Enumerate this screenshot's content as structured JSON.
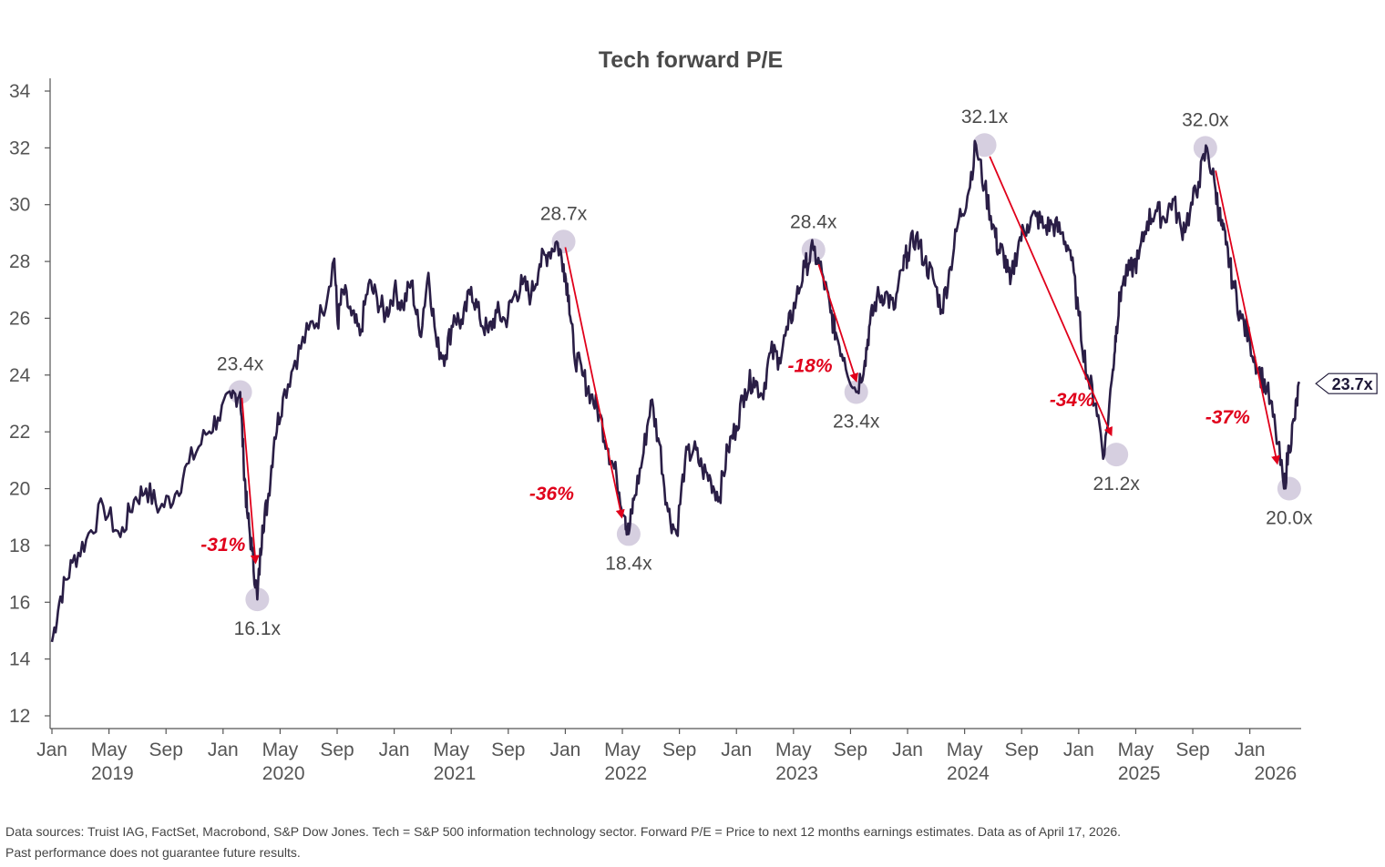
{
  "chart_data": {
    "type": "line",
    "title": "Tech forward P/E",
    "xlabel": "",
    "ylabel": "",
    "ylim": [
      12,
      34
    ],
    "y_ticks": [
      "12",
      "14",
      "16",
      "18",
      "20",
      "22",
      "24",
      "26",
      "28",
      "30",
      "32",
      "34"
    ],
    "x_range": [
      2019.0,
      2026.3
    ],
    "x_tick_labels": [
      "Jan",
      "May",
      "Sep",
      "Jan",
      "May",
      "Sep",
      "Jan",
      "May",
      "Sep",
      "Jan",
      "May",
      "Sep",
      "Jan",
      "May",
      "Sep",
      "Jan",
      "May",
      "Sep",
      "Jan",
      "May",
      "Sep",
      "Jan"
    ],
    "year_labels": [
      "2019",
      "2020",
      "2021",
      "2022",
      "2023",
      "2024",
      "2025",
      "2026"
    ],
    "series": [
      {
        "name": "Tech forward P/E",
        "color": "#2a1e46",
        "x": [
          2019.0,
          2019.05,
          2019.12,
          2019.2,
          2019.3,
          2019.4,
          2019.48,
          2019.55,
          2019.63,
          2019.72,
          2019.8,
          2019.9,
          2019.97,
          2020.05,
          2020.1,
          2020.12,
          2020.14,
          2020.17,
          2020.2,
          2020.23,
          2020.26,
          2020.3,
          2020.35,
          2020.42,
          2020.5,
          2020.58,
          2020.65,
          2020.67,
          2020.7,
          2020.75,
          2020.8,
          2020.85,
          2020.9,
          2020.95,
          2021.0,
          2021.05,
          2021.1,
          2021.15,
          2021.2,
          2021.25,
          2021.3,
          2021.35,
          2021.4,
          2021.45,
          2021.5,
          2021.55,
          2021.6,
          2021.65,
          2021.7,
          2021.75,
          2021.8,
          2021.85,
          2021.9,
          2021.95,
          2021.99,
          2022.02,
          2022.05,
          2022.1,
          2022.15,
          2022.2,
          2022.25,
          2022.3,
          2022.35,
          2022.37,
          2022.4,
          2022.45,
          2022.5,
          2022.55,
          2022.6,
          2022.65,
          2022.7,
          2022.75,
          2022.8,
          2022.85,
          2022.9,
          2022.95,
          2023.0,
          2023.05,
          2023.1,
          2023.15,
          2023.2,
          2023.25,
          2023.3,
          2023.35,
          2023.4,
          2023.45,
          2023.5,
          2023.55,
          2023.58,
          2023.63,
          2023.7,
          2023.75,
          2023.78,
          2023.82,
          2023.87,
          2023.92,
          2023.97,
          2024.0,
          2024.05,
          2024.1,
          2024.15,
          2024.2,
          2024.25,
          2024.3,
          2024.35,
          2024.4,
          2024.45,
          2024.5,
          2024.53,
          2024.56,
          2024.6,
          2024.65,
          2024.7,
          2024.75,
          2024.8,
          2024.85,
          2024.9,
          2024.95,
          2025.0,
          2025.05,
          2025.1,
          2025.15,
          2025.2,
          2025.22,
          2025.25,
          2025.3,
          2025.35,
          2025.4,
          2025.45,
          2025.5,
          2025.55,
          2025.6,
          2025.65,
          2025.7,
          2025.75,
          2025.8,
          2025.83,
          2025.86,
          2025.9,
          2025.95,
          2026.0,
          2026.05,
          2026.1,
          2026.15,
          2026.2,
          2026.23,
          2026.26,
          2026.29
        ],
        "y": [
          14.6,
          16.2,
          17.4,
          18.2,
          19.4,
          18.3,
          19.6,
          20.0,
          19.3,
          19.8,
          20.9,
          21.9,
          22.5,
          23.2,
          23.4,
          21.0,
          19.2,
          17.8,
          16.1,
          18.7,
          19.5,
          21.8,
          23.2,
          24.5,
          25.6,
          26.2,
          28.1,
          25.8,
          27.0,
          26.1,
          25.4,
          27.2,
          26.7,
          26.1,
          27.0,
          26.4,
          27.3,
          25.4,
          27.6,
          25.0,
          24.7,
          26.1,
          25.8,
          27.1,
          26.0,
          25.5,
          26.2,
          25.9,
          26.8,
          27.2,
          26.8,
          27.9,
          28.3,
          28.7,
          27.9,
          26.8,
          24.8,
          24.0,
          23.3,
          22.6,
          21.4,
          20.4,
          19.0,
          18.4,
          19.6,
          21.0,
          23.1,
          21.6,
          19.2,
          18.4,
          21.0,
          21.4,
          20.7,
          20.3,
          19.7,
          21.4,
          22.2,
          23.5,
          23.9,
          23.3,
          24.8,
          24.6,
          25.6,
          26.7,
          27.8,
          28.4,
          27.6,
          26.2,
          25.5,
          24.6,
          23.4,
          24.5,
          25.8,
          26.7,
          26.9,
          26.3,
          27.7,
          28.3,
          28.9,
          28.0,
          27.4,
          26.3,
          27.8,
          29.5,
          30.3,
          32.1,
          30.6,
          29.3,
          28.4,
          28.3,
          27.2,
          28.7,
          29.3,
          29.6,
          29.2,
          29.3,
          29.0,
          28.4,
          26.1,
          24.0,
          23.0,
          21.2,
          24.2,
          25.7,
          27.1,
          27.7,
          28.1,
          29.4,
          29.8,
          29.5,
          30.2,
          29.1,
          29.7,
          30.8,
          32.0,
          30.5,
          29.4,
          28.6,
          27.3,
          26.0,
          25.2,
          24.2,
          23.5,
          22.1,
          20.0,
          21.5,
          22.4,
          23.7
        ]
      }
    ],
    "peaks_troughs": [
      {
        "x": 2020.1,
        "y": 23.4,
        "label": "23.4x",
        "pos": "above"
      },
      {
        "x": 2020.2,
        "y": 16.1,
        "label": "16.1x",
        "pos": "below"
      },
      {
        "x": 2021.99,
        "y": 28.7,
        "label": "28.7x",
        "pos": "above"
      },
      {
        "x": 2022.37,
        "y": 18.4,
        "label": "18.4x",
        "pos": "below"
      },
      {
        "x": 2023.45,
        "y": 28.4,
        "label": "28.4x",
        "pos": "above"
      },
      {
        "x": 2023.7,
        "y": 23.4,
        "label": "23.4x",
        "pos": "below"
      },
      {
        "x": 2024.45,
        "y": 32.1,
        "label": "32.1x",
        "pos": "above"
      },
      {
        "x": 2025.22,
        "y": 21.2,
        "label": "21.2x",
        "pos": "below"
      },
      {
        "x": 2025.74,
        "y": 32.0,
        "label": "32.0x",
        "pos": "above"
      },
      {
        "x": 2026.23,
        "y": 20.0,
        "label": "20.0x",
        "pos": "below"
      }
    ],
    "drawdowns": [
      {
        "from": [
          2020.11,
          23.2
        ],
        "to": [
          2020.19,
          17.4
        ],
        "label": "-31%",
        "at": [
          2020.0,
          17.8
        ]
      },
      {
        "from": [
          2022.0,
          28.5
        ],
        "to": [
          2022.33,
          19.0
        ],
        "label": "-36%",
        "at": [
          2021.92,
          19.6
        ]
      },
      {
        "from": [
          2023.48,
          27.9
        ],
        "to": [
          2023.7,
          23.8
        ],
        "label": "-18%",
        "at": [
          2023.43,
          24.1
        ]
      },
      {
        "from": [
          2024.48,
          31.7
        ],
        "to": [
          2025.19,
          21.9
        ],
        "label": "-34%",
        "at": [
          2024.96,
          22.9
        ]
      },
      {
        "from": [
          2025.8,
          31.2
        ],
        "to": [
          2026.16,
          20.9
        ],
        "label": "-37%",
        "at": [
          2025.87,
          22.3
        ]
      }
    ],
    "last_value_label": "23.7x",
    "peak_marker_color": "#d6cfe0",
    "arrow_color": "#e0001b"
  },
  "footnotes": [
    "Data sources: Truist IAG, FactSet, Macrobond, S&P Dow Jones. Tech = S&P 500 information technology sector. Forward P/E = Price to next 12 months earnings estimates. Data as of April 17, 2026.",
    "Past performance does not guarantee future results."
  ]
}
